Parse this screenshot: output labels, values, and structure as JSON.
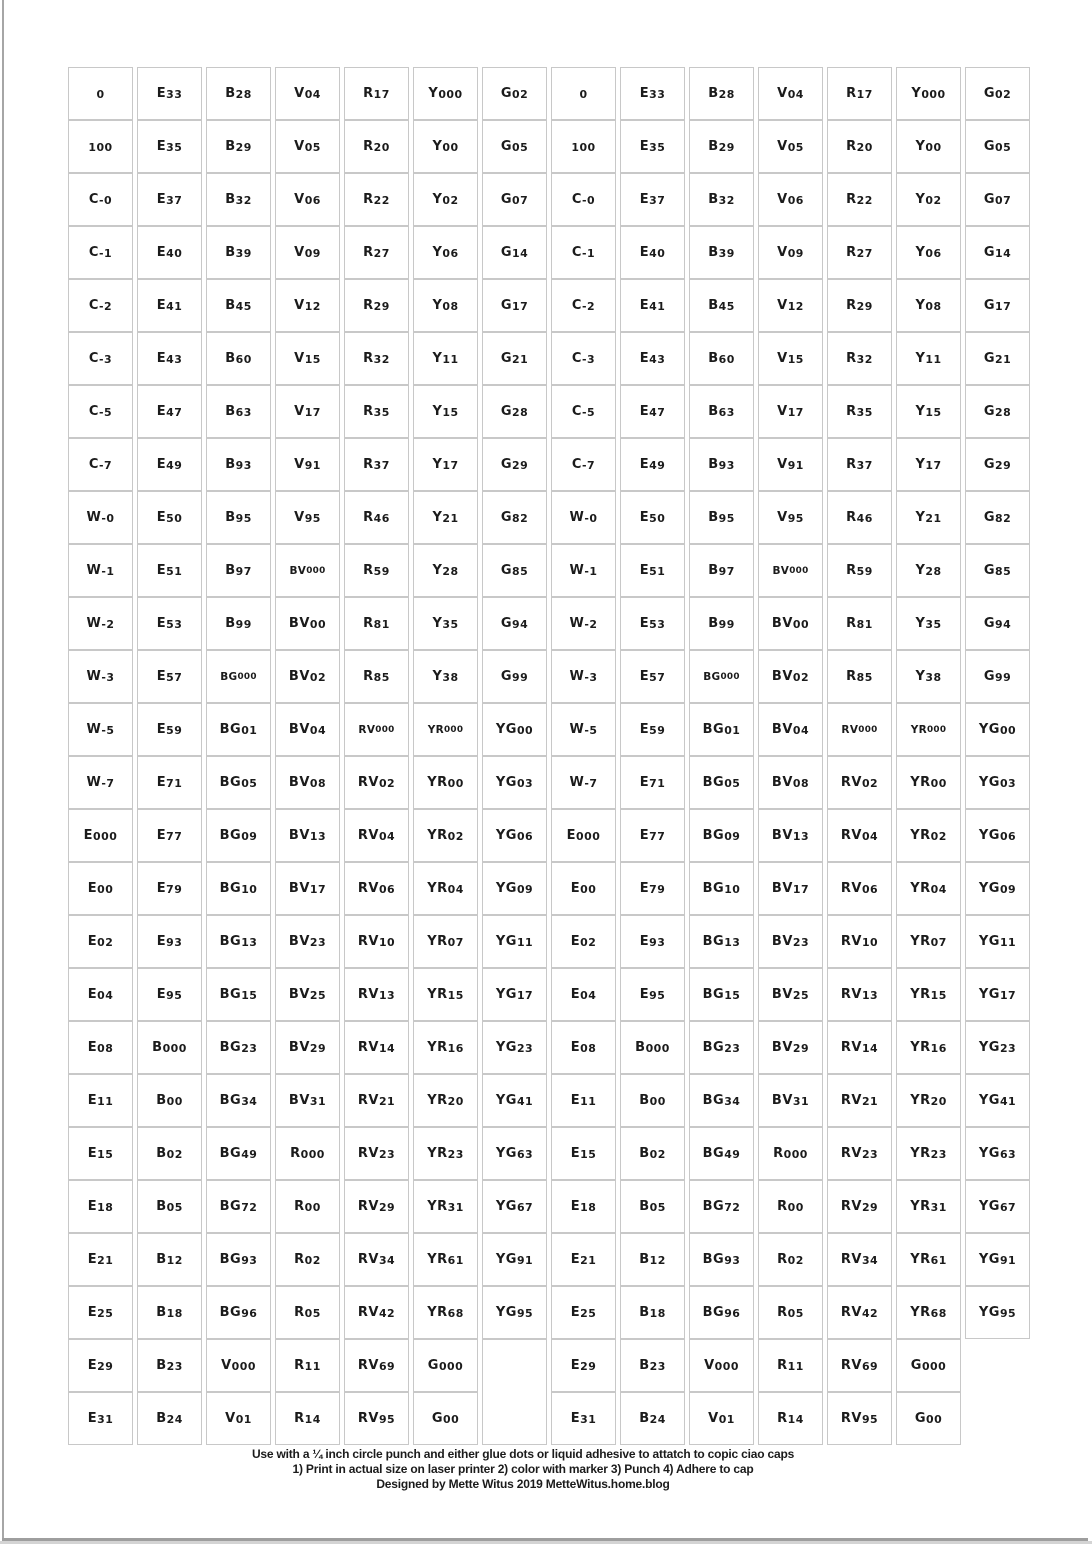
{
  "page": {
    "background": "#ffffff",
    "edge_color": "#a6a6a6",
    "bottom_line_color": "#9e9e9e",
    "bottom_strip_color": "#d4d4d4"
  },
  "table": {
    "border_color": "#c8c8c8",
    "text_color": "#1b1b1b",
    "halves": 2,
    "rows": 26,
    "columns_per_half": 7,
    "columns": [
      [
        "0",
        "100",
        "C-0",
        "C-1",
        "C-2",
        "C-3",
        "C-5",
        "C-7",
        "W-0",
        "W-1",
        "W-2",
        "W-3",
        "W-5",
        "W-7",
        "E000",
        "E00",
        "E02",
        "E04",
        "E08",
        "E11",
        "E15",
        "E18",
        "E21",
        "E25",
        "E29",
        "E31"
      ],
      [
        "E33",
        "E35",
        "E37",
        "E40",
        "E41",
        "E43",
        "E47",
        "E49",
        "E50",
        "E51",
        "E53",
        "E57",
        "E59",
        "E71",
        "E77",
        "E79",
        "E93",
        "E95",
        "B000",
        "B00",
        "B02",
        "B05",
        "B12",
        "B18",
        "B23",
        "B24"
      ],
      [
        "B28",
        "B29",
        "B32",
        "B39",
        "B45",
        "B60",
        "B63",
        "B93",
        "B95",
        "B97",
        "B99",
        "BG000",
        "BG01",
        "BG05",
        "BG09",
        "BG10",
        "BG13",
        "BG15",
        "BG23",
        "BG34",
        "BG49",
        "BG72",
        "BG93",
        "BG96",
        "V000",
        "V01"
      ],
      [
        "V04",
        "V05",
        "V06",
        "V09",
        "V12",
        "V15",
        "V17",
        "V91",
        "V95",
        "BV000",
        "BV00",
        "BV02",
        "BV04",
        "BV08",
        "BV13",
        "BV17",
        "BV23",
        "BV25",
        "BV29",
        "BV31",
        "R000",
        "R00",
        "R02",
        "R05",
        "R11",
        "R14"
      ],
      [
        "R17",
        "R20",
        "R22",
        "R27",
        "R29",
        "R32",
        "R35",
        "R37",
        "R46",
        "R59",
        "R81",
        "R85",
        "RV000",
        "RV02",
        "RV04",
        "RV06",
        "RV10",
        "RV13",
        "RV14",
        "RV21",
        "RV23",
        "RV29",
        "RV34",
        "RV42",
        "RV69",
        "RV95"
      ],
      [
        "Y000",
        "Y00",
        "Y02",
        "Y06",
        "Y08",
        "Y11",
        "Y15",
        "Y17",
        "Y21",
        "Y28",
        "Y35",
        "Y38",
        "YR000",
        "YR00",
        "YR02",
        "YR04",
        "YR07",
        "YR15",
        "YR16",
        "YR20",
        "YR23",
        "YR31",
        "YR61",
        "YR68",
        "G000",
        "G00"
      ],
      [
        "G02",
        "G05",
        "G07",
        "G14",
        "G17",
        "G21",
        "G28",
        "G29",
        "G82",
        "G85",
        "G94",
        "G99",
        "YG00",
        "YG03",
        "YG06",
        "YG09",
        "YG11",
        "YG17",
        "YG23",
        "YG41",
        "YG63",
        "YG67",
        "YG91",
        "YG95"
      ]
    ]
  },
  "caption": {
    "line1": "Use with a ¼ inch circle punch and either glue dots or liquid adhesive to attatch to copic ciao caps",
    "line2": "1) Print in actual size on laser printer 2) color with marker 3) Punch 4) Adhere to cap",
    "line3": "Designed by Mette Witus 2019 MetteWitus.home.blog"
  }
}
